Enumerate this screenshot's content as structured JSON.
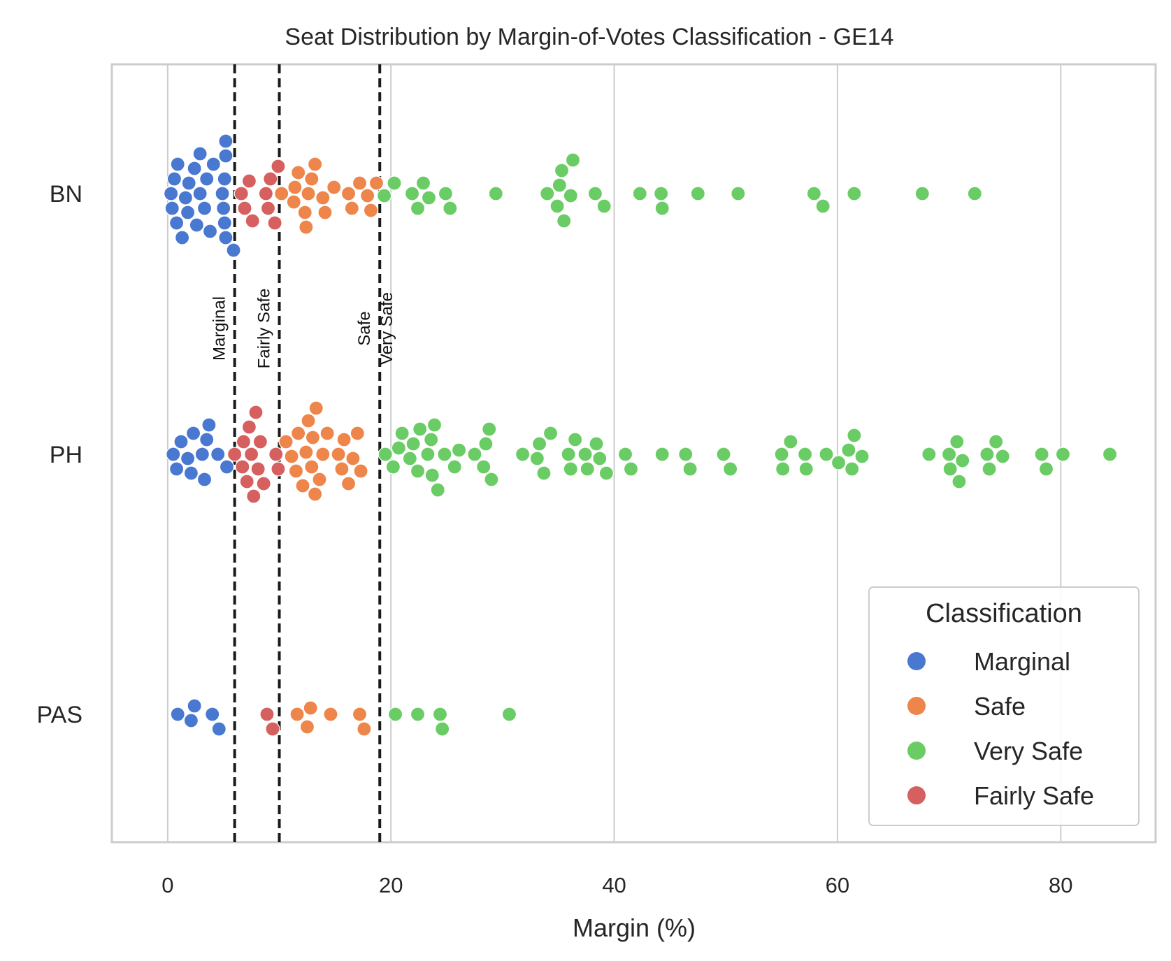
{
  "chart_data": {
    "type": "scatter",
    "subtype": "swarm",
    "title": "Seat Distribution by Margin-of-Votes Classification - GE14",
    "xlabel": "Margin (%)",
    "ylabel": "",
    "xlim": [
      -5,
      88.5
    ],
    "xticks": [
      0,
      20,
      40,
      60,
      80
    ],
    "grid": "vertical",
    "categories": [
      "BN",
      "PH",
      "PAS"
    ],
    "thresholds": [
      {
        "value": 6,
        "label": "Marginal"
      },
      {
        "value": 10,
        "label": "Fairly Safe"
      },
      {
        "value": 19,
        "label": "Safe"
      },
      {
        "value": 21,
        "label": "Very Safe",
        "line": false
      }
    ],
    "legend": {
      "title": "Classification",
      "position": "lower right",
      "entries": [
        {
          "name": "Marginal",
          "color": "#4878d0"
        },
        {
          "name": "Safe",
          "color": "#ee854a"
        },
        {
          "name": "Very Safe",
          "color": "#6acc64"
        },
        {
          "name": "Fairly Safe",
          "color": "#d65f5f"
        }
      ]
    },
    "series": [
      {
        "category": "BN",
        "points": [
          {
            "x": 0.3,
            "class": "Marginal"
          },
          {
            "x": 0.4,
            "class": "Marginal"
          },
          {
            "x": 0.6,
            "class": "Marginal"
          },
          {
            "x": 0.8,
            "class": "Marginal"
          },
          {
            "x": 0.9,
            "class": "Marginal"
          },
          {
            "x": 1.3,
            "class": "Marginal"
          },
          {
            "x": 1.6,
            "class": "Marginal"
          },
          {
            "x": 1.8,
            "class": "Marginal"
          },
          {
            "x": 1.9,
            "class": "Marginal"
          },
          {
            "x": 2.4,
            "class": "Marginal"
          },
          {
            "x": 2.6,
            "class": "Marginal"
          },
          {
            "x": 2.9,
            "class": "Marginal"
          },
          {
            "x": 2.9,
            "class": "Marginal"
          },
          {
            "x": 3.3,
            "class": "Marginal"
          },
          {
            "x": 3.5,
            "class": "Marginal"
          },
          {
            "x": 3.8,
            "class": "Marginal"
          },
          {
            "x": 4.1,
            "class": "Marginal"
          },
          {
            "x": 4.9,
            "class": "Marginal"
          },
          {
            "x": 5.0,
            "class": "Marginal"
          },
          {
            "x": 5.1,
            "class": "Marginal"
          },
          {
            "x": 5.1,
            "class": "Marginal"
          },
          {
            "x": 5.2,
            "class": "Marginal"
          },
          {
            "x": 5.2,
            "class": "Marginal"
          },
          {
            "x": 5.2,
            "class": "Marginal"
          },
          {
            "x": 5.9,
            "class": "Marginal"
          },
          {
            "x": 6.6,
            "class": "Fairly Safe"
          },
          {
            "x": 6.9,
            "class": "Fairly Safe"
          },
          {
            "x": 7.3,
            "class": "Fairly Safe"
          },
          {
            "x": 7.6,
            "class": "Fairly Safe"
          },
          {
            "x": 8.8,
            "class": "Fairly Safe"
          },
          {
            "x": 9.0,
            "class": "Fairly Safe"
          },
          {
            "x": 9.2,
            "class": "Fairly Safe"
          },
          {
            "x": 9.6,
            "class": "Fairly Safe"
          },
          {
            "x": 9.9,
            "class": "Fairly Safe"
          },
          {
            "x": 10.2,
            "class": "Safe"
          },
          {
            "x": 11.3,
            "class": "Safe"
          },
          {
            "x": 11.4,
            "class": "Safe"
          },
          {
            "x": 11.7,
            "class": "Safe"
          },
          {
            "x": 12.3,
            "class": "Safe"
          },
          {
            "x": 12.4,
            "class": "Safe"
          },
          {
            "x": 12.6,
            "class": "Safe"
          },
          {
            "x": 12.9,
            "class": "Safe"
          },
          {
            "x": 13.2,
            "class": "Safe"
          },
          {
            "x": 13.9,
            "class": "Safe"
          },
          {
            "x": 14.1,
            "class": "Safe"
          },
          {
            "x": 14.9,
            "class": "Safe"
          },
          {
            "x": 16.2,
            "class": "Safe"
          },
          {
            "x": 16.5,
            "class": "Safe"
          },
          {
            "x": 17.2,
            "class": "Safe"
          },
          {
            "x": 17.9,
            "class": "Safe"
          },
          {
            "x": 18.2,
            "class": "Safe"
          },
          {
            "x": 18.7,
            "class": "Safe"
          },
          {
            "x": 19.4,
            "class": "Very Safe"
          },
          {
            "x": 20.3,
            "class": "Very Safe"
          },
          {
            "x": 21.9,
            "class": "Very Safe"
          },
          {
            "x": 22.4,
            "class": "Very Safe"
          },
          {
            "x": 22.9,
            "class": "Very Safe"
          },
          {
            "x": 23.4,
            "class": "Very Safe"
          },
          {
            "x": 24.9,
            "class": "Very Safe"
          },
          {
            "x": 25.3,
            "class": "Very Safe"
          },
          {
            "x": 29.4,
            "class": "Very Safe"
          },
          {
            "x": 34.0,
            "class": "Very Safe"
          },
          {
            "x": 34.9,
            "class": "Very Safe"
          },
          {
            "x": 35.1,
            "class": "Very Safe"
          },
          {
            "x": 35.3,
            "class": "Very Safe"
          },
          {
            "x": 35.5,
            "class": "Very Safe"
          },
          {
            "x": 36.1,
            "class": "Very Safe"
          },
          {
            "x": 36.3,
            "class": "Very Safe"
          },
          {
            "x": 38.3,
            "class": "Very Safe"
          },
          {
            "x": 39.1,
            "class": "Very Safe"
          },
          {
            "x": 42.3,
            "class": "Very Safe"
          },
          {
            "x": 44.2,
            "class": "Very Safe"
          },
          {
            "x": 44.3,
            "class": "Very Safe"
          },
          {
            "x": 47.5,
            "class": "Very Safe"
          },
          {
            "x": 51.1,
            "class": "Very Safe"
          },
          {
            "x": 57.9,
            "class": "Very Safe"
          },
          {
            "x": 58.7,
            "class": "Very Safe"
          },
          {
            "x": 61.5,
            "class": "Very Safe"
          },
          {
            "x": 67.6,
            "class": "Very Safe"
          },
          {
            "x": 72.3,
            "class": "Very Safe"
          }
        ]
      },
      {
        "category": "PH",
        "points": [
          {
            "x": 0.5,
            "class": "Marginal"
          },
          {
            "x": 0.8,
            "class": "Marginal"
          },
          {
            "x": 1.2,
            "class": "Marginal"
          },
          {
            "x": 1.8,
            "class": "Marginal"
          },
          {
            "x": 2.1,
            "class": "Marginal"
          },
          {
            "x": 2.3,
            "class": "Marginal"
          },
          {
            "x": 3.1,
            "class": "Marginal"
          },
          {
            "x": 3.3,
            "class": "Marginal"
          },
          {
            "x": 3.5,
            "class": "Marginal"
          },
          {
            "x": 3.7,
            "class": "Marginal"
          },
          {
            "x": 4.5,
            "class": "Marginal"
          },
          {
            "x": 5.3,
            "class": "Marginal"
          },
          {
            "x": 6.0,
            "class": "Fairly Safe"
          },
          {
            "x": 6.7,
            "class": "Fairly Safe"
          },
          {
            "x": 6.8,
            "class": "Fairly Safe"
          },
          {
            "x": 7.1,
            "class": "Fairly Safe"
          },
          {
            "x": 7.3,
            "class": "Fairly Safe"
          },
          {
            "x": 7.5,
            "class": "Fairly Safe"
          },
          {
            "x": 7.7,
            "class": "Fairly Safe"
          },
          {
            "x": 7.9,
            "class": "Fairly Safe"
          },
          {
            "x": 8.1,
            "class": "Fairly Safe"
          },
          {
            "x": 8.3,
            "class": "Fairly Safe"
          },
          {
            "x": 8.6,
            "class": "Fairly Safe"
          },
          {
            "x": 9.7,
            "class": "Fairly Safe"
          },
          {
            "x": 9.9,
            "class": "Fairly Safe"
          },
          {
            "x": 10.6,
            "class": "Safe"
          },
          {
            "x": 11.1,
            "class": "Safe"
          },
          {
            "x": 11.5,
            "class": "Safe"
          },
          {
            "x": 11.7,
            "class": "Safe"
          },
          {
            "x": 12.1,
            "class": "Safe"
          },
          {
            "x": 12.4,
            "class": "Safe"
          },
          {
            "x": 12.6,
            "class": "Safe"
          },
          {
            "x": 12.9,
            "class": "Safe"
          },
          {
            "x": 13.0,
            "class": "Safe"
          },
          {
            "x": 13.2,
            "class": "Safe"
          },
          {
            "x": 13.3,
            "class": "Safe"
          },
          {
            "x": 13.6,
            "class": "Safe"
          },
          {
            "x": 13.9,
            "class": "Safe"
          },
          {
            "x": 14.3,
            "class": "Safe"
          },
          {
            "x": 15.3,
            "class": "Safe"
          },
          {
            "x": 15.6,
            "class": "Safe"
          },
          {
            "x": 15.8,
            "class": "Safe"
          },
          {
            "x": 16.2,
            "class": "Safe"
          },
          {
            "x": 16.6,
            "class": "Safe"
          },
          {
            "x": 17.0,
            "class": "Safe"
          },
          {
            "x": 17.3,
            "class": "Safe"
          },
          {
            "x": 19.5,
            "class": "Very Safe"
          },
          {
            "x": 20.2,
            "class": "Very Safe"
          },
          {
            "x": 20.7,
            "class": "Very Safe"
          },
          {
            "x": 21.0,
            "class": "Very Safe"
          },
          {
            "x": 21.7,
            "class": "Very Safe"
          },
          {
            "x": 22.0,
            "class": "Very Safe"
          },
          {
            "x": 22.4,
            "class": "Very Safe"
          },
          {
            "x": 22.6,
            "class": "Very Safe"
          },
          {
            "x": 23.3,
            "class": "Very Safe"
          },
          {
            "x": 23.6,
            "class": "Very Safe"
          },
          {
            "x": 23.7,
            "class": "Very Safe"
          },
          {
            "x": 23.9,
            "class": "Very Safe"
          },
          {
            "x": 24.2,
            "class": "Very Safe"
          },
          {
            "x": 24.8,
            "class": "Very Safe"
          },
          {
            "x": 25.7,
            "class": "Very Safe"
          },
          {
            "x": 26.1,
            "class": "Very Safe"
          },
          {
            "x": 27.5,
            "class": "Very Safe"
          },
          {
            "x": 28.3,
            "class": "Very Safe"
          },
          {
            "x": 28.5,
            "class": "Very Safe"
          },
          {
            "x": 28.8,
            "class": "Very Safe"
          },
          {
            "x": 29.0,
            "class": "Very Safe"
          },
          {
            "x": 31.8,
            "class": "Very Safe"
          },
          {
            "x": 33.1,
            "class": "Very Safe"
          },
          {
            "x": 33.3,
            "class": "Very Safe"
          },
          {
            "x": 33.7,
            "class": "Very Safe"
          },
          {
            "x": 34.3,
            "class": "Very Safe"
          },
          {
            "x": 35.9,
            "class": "Very Safe"
          },
          {
            "x": 36.1,
            "class": "Very Safe"
          },
          {
            "x": 36.5,
            "class": "Very Safe"
          },
          {
            "x": 37.4,
            "class": "Very Safe"
          },
          {
            "x": 37.6,
            "class": "Very Safe"
          },
          {
            "x": 38.4,
            "class": "Very Safe"
          },
          {
            "x": 38.7,
            "class": "Very Safe"
          },
          {
            "x": 39.3,
            "class": "Very Safe"
          },
          {
            "x": 41.0,
            "class": "Very Safe"
          },
          {
            "x": 41.5,
            "class": "Very Safe"
          },
          {
            "x": 44.3,
            "class": "Very Safe"
          },
          {
            "x": 46.4,
            "class": "Very Safe"
          },
          {
            "x": 46.8,
            "class": "Very Safe"
          },
          {
            "x": 49.8,
            "class": "Very Safe"
          },
          {
            "x": 50.4,
            "class": "Very Safe"
          },
          {
            "x": 55.0,
            "class": "Very Safe"
          },
          {
            "x": 55.1,
            "class": "Very Safe"
          },
          {
            "x": 55.8,
            "class": "Very Safe"
          },
          {
            "x": 57.1,
            "class": "Very Safe"
          },
          {
            "x": 57.2,
            "class": "Very Safe"
          },
          {
            "x": 59.0,
            "class": "Very Safe"
          },
          {
            "x": 60.1,
            "class": "Very Safe"
          },
          {
            "x": 61.0,
            "class": "Very Safe"
          },
          {
            "x": 61.3,
            "class": "Very Safe"
          },
          {
            "x": 61.5,
            "class": "Very Safe"
          },
          {
            "x": 62.2,
            "class": "Very Safe"
          },
          {
            "x": 68.2,
            "class": "Very Safe"
          },
          {
            "x": 70.0,
            "class": "Very Safe"
          },
          {
            "x": 70.1,
            "class": "Very Safe"
          },
          {
            "x": 70.7,
            "class": "Very Safe"
          },
          {
            "x": 70.9,
            "class": "Very Safe"
          },
          {
            "x": 71.2,
            "class": "Very Safe"
          },
          {
            "x": 73.4,
            "class": "Very Safe"
          },
          {
            "x": 73.6,
            "class": "Very Safe"
          },
          {
            "x": 74.2,
            "class": "Very Safe"
          },
          {
            "x": 74.8,
            "class": "Very Safe"
          },
          {
            "x": 78.3,
            "class": "Very Safe"
          },
          {
            "x": 78.7,
            "class": "Very Safe"
          },
          {
            "x": 80.2,
            "class": "Very Safe"
          },
          {
            "x": 84.4,
            "class": "Very Safe"
          }
        ]
      },
      {
        "category": "PAS",
        "points": [
          {
            "x": 0.9,
            "class": "Marginal"
          },
          {
            "x": 2.1,
            "class": "Marginal"
          },
          {
            "x": 2.4,
            "class": "Marginal"
          },
          {
            "x": 4.0,
            "class": "Marginal"
          },
          {
            "x": 4.6,
            "class": "Marginal"
          },
          {
            "x": 8.9,
            "class": "Fairly Safe"
          },
          {
            "x": 9.4,
            "class": "Fairly Safe"
          },
          {
            "x": 11.6,
            "class": "Safe"
          },
          {
            "x": 12.5,
            "class": "Safe"
          },
          {
            "x": 12.8,
            "class": "Safe"
          },
          {
            "x": 14.6,
            "class": "Safe"
          },
          {
            "x": 17.2,
            "class": "Safe"
          },
          {
            "x": 17.6,
            "class": "Safe"
          },
          {
            "x": 20.4,
            "class": "Very Safe"
          },
          {
            "x": 22.4,
            "class": "Very Safe"
          },
          {
            "x": 24.4,
            "class": "Very Safe"
          },
          {
            "x": 24.6,
            "class": "Very Safe"
          },
          {
            "x": 30.6,
            "class": "Very Safe"
          }
        ]
      }
    ]
  }
}
